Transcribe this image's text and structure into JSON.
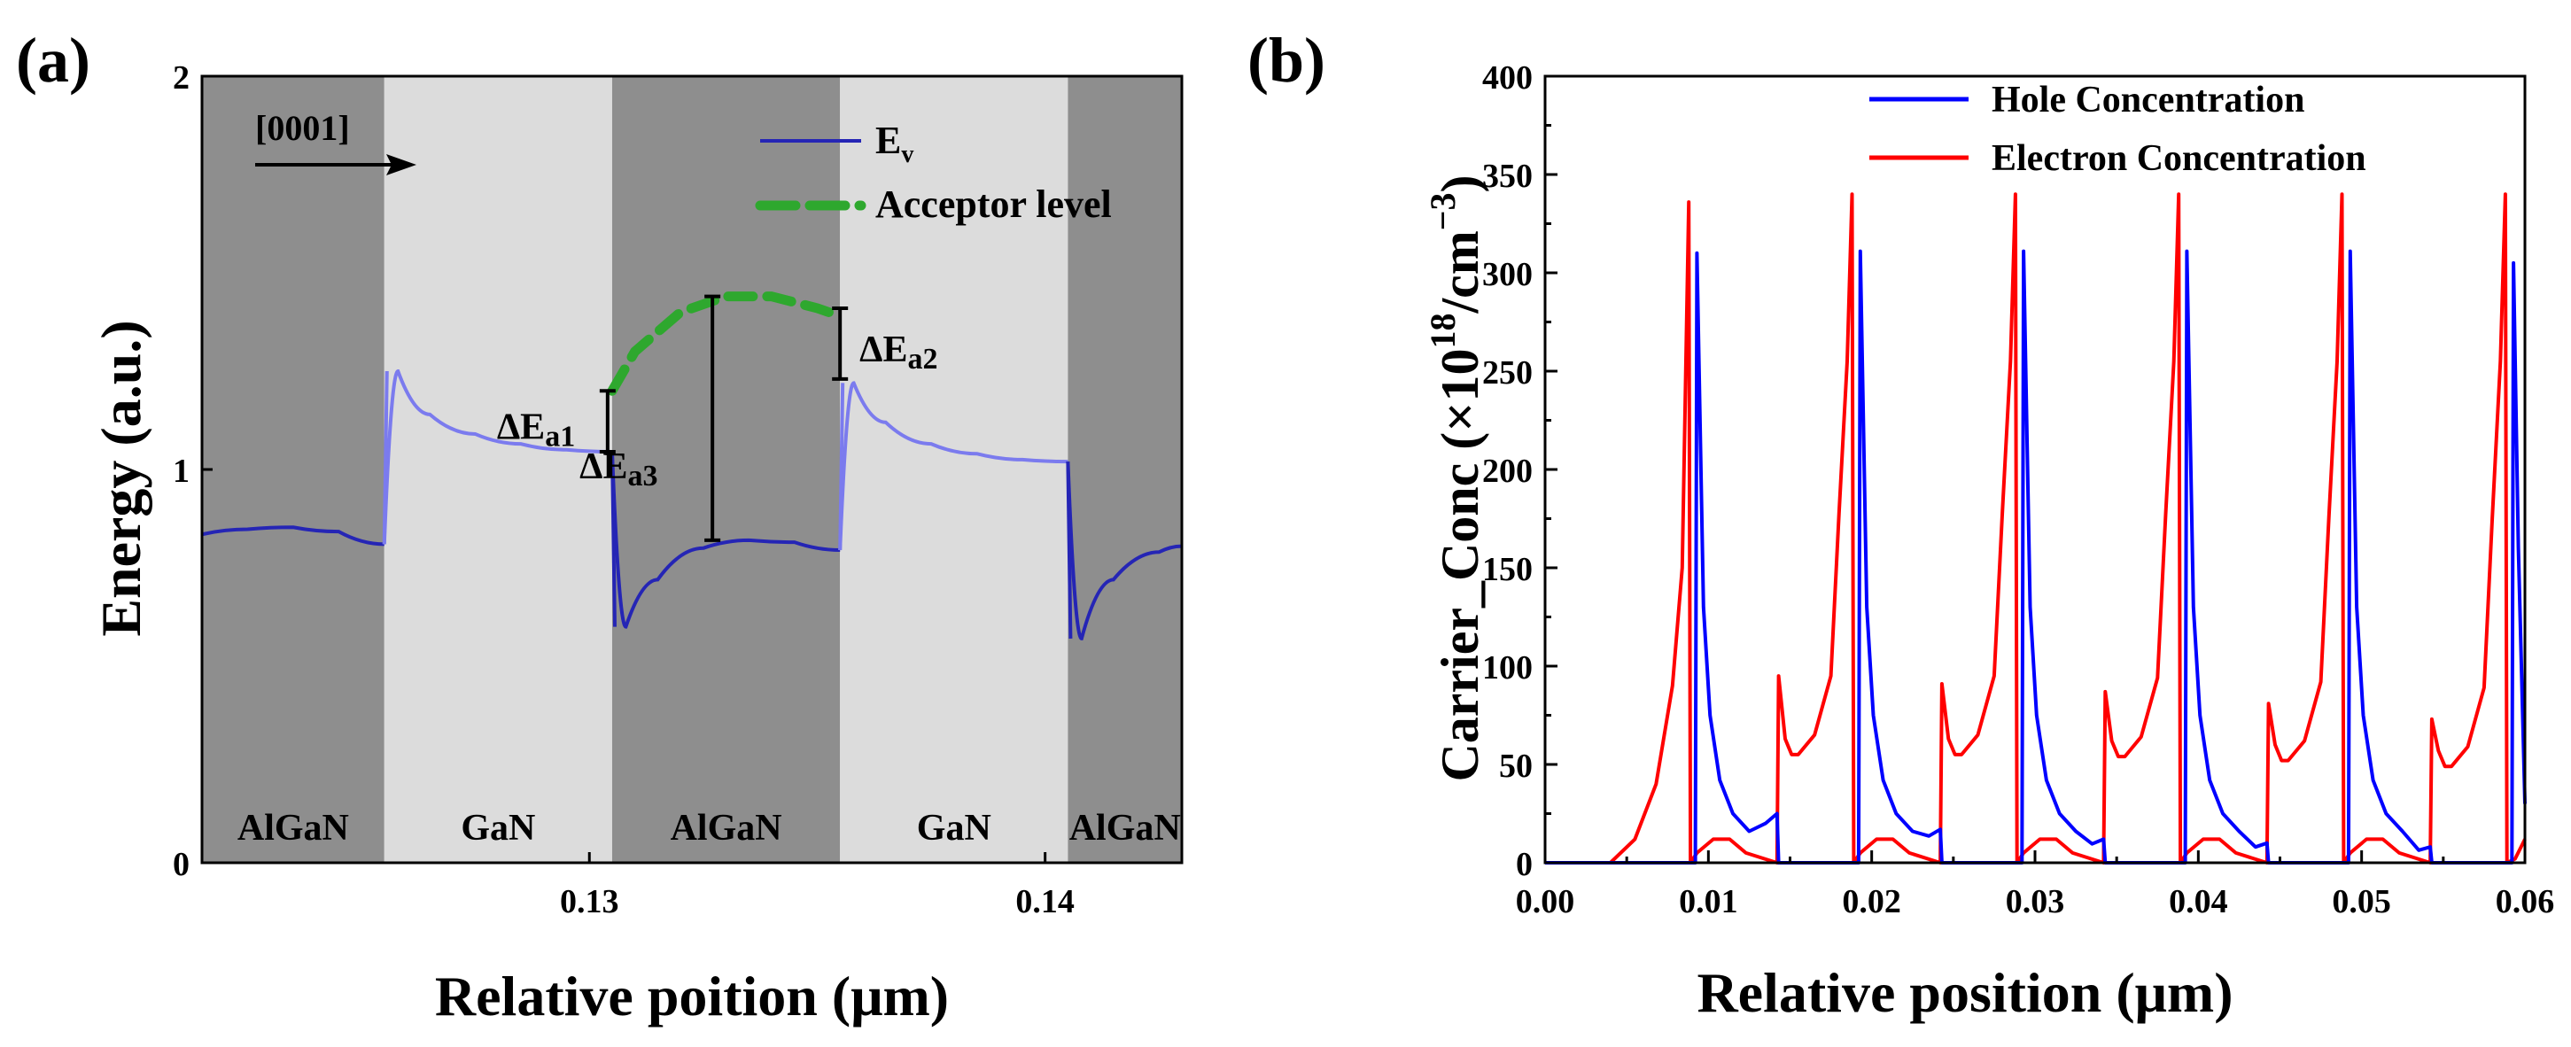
{
  "chart_data": [
    {
      "panel_label": "(a)",
      "type": "line",
      "xlabel": "Relative poition (μm)",
      "ylabel": "Energy (a.u.)",
      "xlim": [
        0.1215,
        0.143
      ],
      "ylim": [
        0,
        2
      ],
      "xticks": [
        0.13,
        0.14
      ],
      "xtick_labels": [
        "0.13",
        "0.14"
      ],
      "yticks": [
        0,
        1,
        2
      ],
      "ytick_labels": [
        "0",
        "1",
        "2"
      ],
      "grid": false,
      "legend_position": "top-right",
      "arrow_label": "[0001]",
      "regions": [
        {
          "label": "AlGaN",
          "x0": 0.1215,
          "x1": 0.1255,
          "color": "#8e8e8e"
        },
        {
          "label": "GaN",
          "x0": 0.1255,
          "x1": 0.1305,
          "color": "#dcdcdc"
        },
        {
          "label": "AlGaN",
          "x0": 0.1305,
          "x1": 0.1355,
          "color": "#8e8e8e"
        },
        {
          "label": "GaN",
          "x0": 0.1355,
          "x1": 0.1405,
          "color": "#dcdcdc"
        },
        {
          "label": "AlGaN",
          "x0": 0.1405,
          "x1": 0.143,
          "color": "#8e8e8e"
        }
      ],
      "series": [
        {
          "name": "E",
          "name_subscript": "v",
          "color": "#2525b5",
          "light_color": "#7b7bee",
          "x": [
            0.1215,
            0.1225,
            0.1235,
            0.1245,
            0.1255,
            0.1255,
            0.1258,
            0.1265,
            0.1275,
            0.1285,
            0.1295,
            0.1305,
            0.1305,
            0.1308,
            0.1315,
            0.1325,
            0.1335,
            0.1345,
            0.1355,
            0.1355,
            0.1358,
            0.1365,
            0.1375,
            0.1385,
            0.1395,
            0.1405,
            0.1405,
            0.1408,
            0.1415,
            0.1425,
            0.143
          ],
          "y": [
            0.835,
            0.848,
            0.853,
            0.842,
            0.81,
            0.81,
            1.25,
            1.14,
            1.09,
            1.065,
            1.05,
            1.045,
            1.045,
            0.6,
            0.72,
            0.8,
            0.82,
            0.815,
            0.795,
            0.795,
            1.22,
            1.12,
            1.065,
            1.04,
            1.025,
            1.02,
            1.02,
            0.57,
            0.72,
            0.79,
            0.805
          ]
        },
        {
          "name": "Acceptor level",
          "color": "#2ea82e",
          "dash": true,
          "x": [
            0.1305,
            0.131,
            0.132,
            0.133,
            0.134,
            0.135,
            0.1355
          ],
          "y": [
            1.2,
            1.3,
            1.4,
            1.44,
            1.44,
            1.41,
            1.39
          ]
        }
      ],
      "annotations": [
        {
          "label": "ΔE",
          "sub": "a1",
          "x": 0.1304,
          "y_low": 1.045,
          "y_high": 1.2
        },
        {
          "label": "ΔE",
          "sub": "a3",
          "x": 0.1327,
          "y_low": 0.82,
          "y_high": 1.44
        },
        {
          "label": "ΔE",
          "sub": "a2",
          "x": 0.1355,
          "y_low": 1.23,
          "y_high": 1.41
        }
      ]
    },
    {
      "panel_label": "(b)",
      "type": "line",
      "xlabel": "Relative position (μm)",
      "ylabel_main": "Carrier_Conc (×10",
      "ylabel_sup": "18",
      "ylabel_mid": "/cm",
      "ylabel_sup2": "−3",
      "ylabel_end": ")",
      "xlim": [
        0,
        0.06
      ],
      "ylim": [
        0,
        400
      ],
      "xticks": [
        0,
        0.01,
        0.02,
        0.03,
        0.04,
        0.05,
        0.06
      ],
      "xtick_labels": [
        "0.00",
        "0.01",
        "0.02",
        "0.03",
        "0.04",
        "0.05",
        "0.06"
      ],
      "yticks": [
        0,
        50,
        100,
        150,
        200,
        250,
        300,
        350,
        400
      ],
      "ytick_labels": [
        "0",
        "50",
        "100",
        "150",
        "200",
        "250",
        "300",
        "350",
        "400"
      ],
      "grid": false,
      "legend_position": "top",
      "series": [
        {
          "name": "Hole Concentration",
          "color": "#0000ff",
          "peaks": [
            0.0093,
            0.0193,
            0.0293,
            0.0393,
            0.0493,
            0.0593
          ],
          "peak_values": [
            310,
            311,
            311,
            311,
            311,
            305
          ],
          "tail_values": [
            25,
            17,
            12,
            10,
            8,
            6
          ]
        },
        {
          "name": "Electron Concentration",
          "color": "#ff0000",
          "peaks": [
            0.0088,
            0.0188,
            0.0288,
            0.0388,
            0.0488,
            0.0588
          ],
          "peak_values": [
            336,
            340,
            340,
            340,
            340,
            340
          ],
          "secondary_x": [
            0.0143,
            0.0243,
            0.0343,
            0.0443,
            0.0543
          ],
          "secondary_values": [
            95,
            91,
            87,
            81,
            73
          ],
          "valley_values": [
            55,
            55,
            54,
            52,
            49
          ]
        }
      ]
    }
  ]
}
